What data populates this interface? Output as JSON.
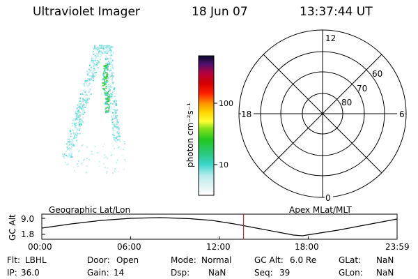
{
  "header": {
    "title": "Ultraviolet Imager",
    "date": "18 Jun 07",
    "time": "13:37:44 UT"
  },
  "colorbar": {
    "unit_label": "photon cm⁻²s⁻¹",
    "ticks": [
      "100",
      "10"
    ]
  },
  "polar": {
    "clock_labels": [
      "12",
      "18",
      "6",
      "0"
    ],
    "lat_labels": [
      "60",
      "70",
      "80"
    ]
  },
  "timeline": {
    "ylabel": "GC Alt",
    "y_ticks": [
      "9.0",
      "1.8"
    ],
    "left_label": "Geographic Lat/Lon",
    "right_label": "Apex MLat/MLT",
    "x_ticks": [
      "00:00",
      "06:00",
      "12:00",
      "18:00",
      "23:59"
    ],
    "current_time_hours": 13.63
  },
  "info": {
    "row1": [
      {
        "label": "Flt:",
        "value": "LBHL"
      },
      {
        "label": "Door:",
        "value": "Open"
      },
      {
        "label": "Mode:",
        "value": "Normal"
      },
      {
        "label": "GC Alt:",
        "value": "6.0 Re"
      },
      {
        "label": "GLat:",
        "value": "NaN"
      }
    ],
    "row2": [
      {
        "label": "IP:",
        "value": "36.0"
      },
      {
        "label": "Gain:",
        "value": "14"
      },
      {
        "label": "Dsp:",
        "value": "NaN"
      },
      {
        "label": "Seq:",
        "value": "39"
      },
      {
        "label": "GLon:",
        "value": "NaN"
      }
    ]
  },
  "colors": {
    "auroral_teal": "#5fe0d8",
    "auroral_green": "#3ad14a",
    "marker_red": "#d00000"
  }
}
